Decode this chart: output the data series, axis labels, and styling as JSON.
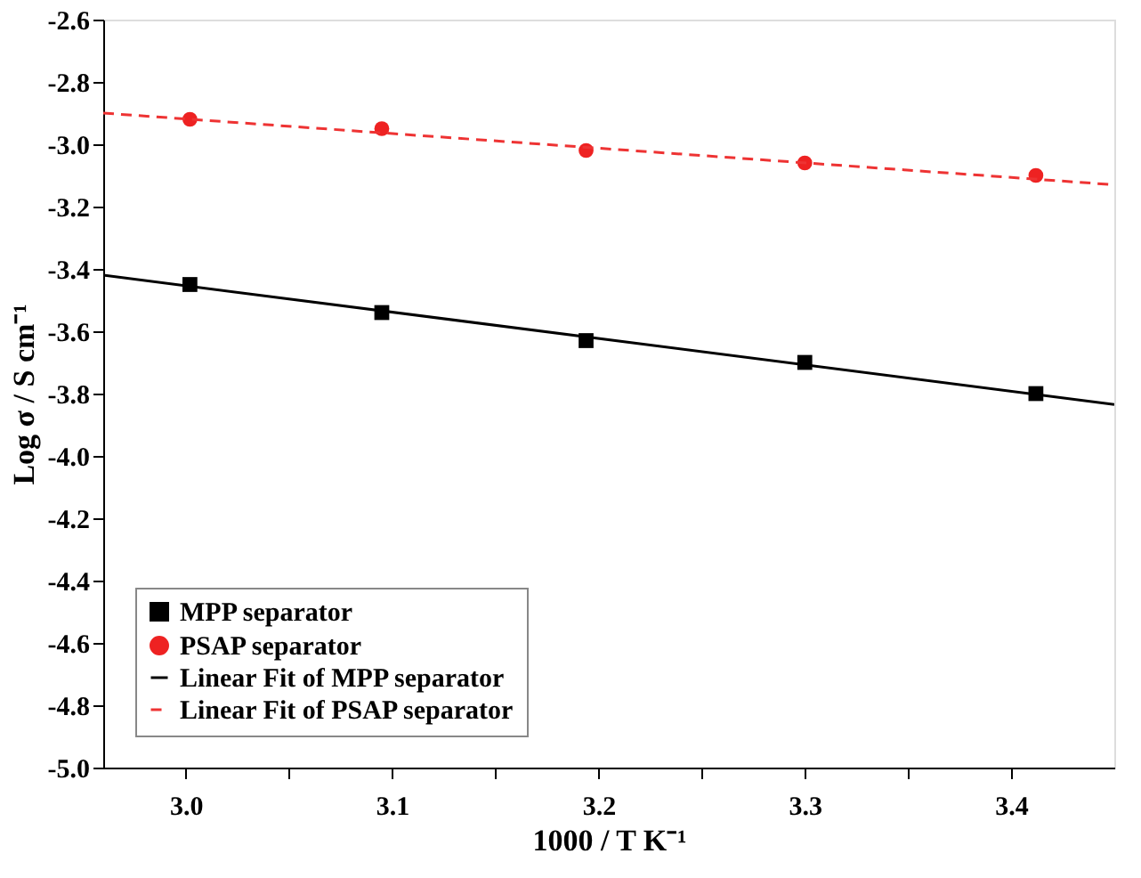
{
  "chart_data": {
    "type": "scatter",
    "xlabel": "1000 / T K⁻¹",
    "ylabel": "Log σ / S cm⁻¹",
    "xlim": [
      2.96,
      3.45
    ],
    "ylim": [
      -5.0,
      -2.6
    ],
    "xticks": [
      {
        "value": 3.0,
        "label": "3.0"
      },
      {
        "value": 3.05,
        "label": null
      },
      3.1,
      {
        "value": 3.15,
        "label": null
      },
      3.2,
      {
        "value": 3.25,
        "label": null
      },
      3.3,
      {
        "value": 3.35,
        "label": null
      },
      3.4
    ],
    "yticks": [
      {
        "value": -5.0,
        "label": "-5.0"
      },
      -4.8,
      -4.6,
      -4.4,
      -4.2,
      {
        "value": -4.0,
        "label": "-4.0"
      },
      -3.8,
      -3.6,
      -3.4,
      -3.2,
      {
        "value": -3.0,
        "label": "-3.0"
      },
      -2.8,
      -2.6
    ],
    "grid": false,
    "legend": "bottom left",
    "series": [
      {
        "name": "MPP separator",
        "marker": "square",
        "color": "#000000",
        "x": [
          3.002,
          3.095,
          3.194,
          3.3,
          3.412
        ],
        "values": [
          -3.45,
          -3.54,
          -3.63,
          -3.7,
          -3.8
        ]
      },
      {
        "name": "PSAP separator",
        "marker": "circle",
        "color": "#ee2222",
        "x": [
          3.002,
          3.095,
          3.194,
          3.3,
          3.412
        ],
        "values": [
          -2.92,
          -2.95,
          -3.02,
          -3.06,
          -3.1
        ]
      },
      {
        "name": "Linear Fit of MPP separator",
        "type": "line",
        "line_style": "solid",
        "color": "#000000",
        "x": [
          2.96,
          3.45
        ],
        "values": [
          -3.42,
          -3.835
        ]
      },
      {
        "name": "Linear Fit of PSAP separator",
        "type": "line",
        "line_style": "dashed",
        "color": "#ee3333",
        "x": [
          2.96,
          3.45
        ],
        "values": [
          -2.9,
          -3.13
        ]
      }
    ]
  }
}
